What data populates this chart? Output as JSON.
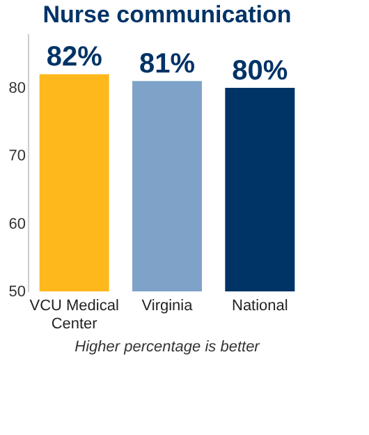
{
  "chart_data": {
    "type": "bar",
    "title": "Nurse communication",
    "categories": [
      "VCU Medical Center",
      "Virginia",
      "National"
    ],
    "values": [
      82,
      81,
      80
    ],
    "colors": [
      "#ffb81c",
      "#7fa3c8",
      "#003366"
    ],
    "value_labels": [
      "82%",
      "81%",
      "80%"
    ],
    "ylim": [
      50,
      88
    ],
    "yticks": [
      50,
      60,
      70,
      80
    ],
    "grid": false,
    "annotations": [
      "Higher percentage is better"
    ]
  }
}
